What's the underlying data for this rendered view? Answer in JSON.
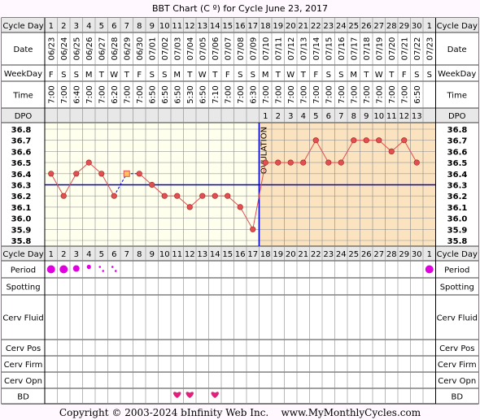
{
  "title": "BBT Chart (C º) for Cycle June 23, 2017",
  "copyright": "Copyright © 2003-2024 bInfinity Web Inc.    www.MyMonthlyCycles.com",
  "row_labels": {
    "cycle_day": "Cycle Day",
    "date": "Date",
    "weekday": "WeekDay",
    "time": "Time",
    "dpo": "DPO",
    "period": "Period",
    "spotting": "Spotting",
    "cerv_fluid": "Cerv Fluid",
    "cerv_pos": "Cerv Pos",
    "cerv_firm": "Cerv Firm",
    "cerv_opn": "Cerv Opn",
    "bd": "BD"
  },
  "ovulation_label": "OVULATION",
  "colors": {
    "temp_line": "#E05050",
    "coverline": "#0000CC",
    "ovulation_line": "#0000CC",
    "post_ovulation_fill": "#FBE3C0",
    "pre_ovulation_fill": "#FFFFEE",
    "period_dot": "#E000E0",
    "bd_heart": "#E0207A",
    "row_header_bg": "#E8E8E8"
  },
  "chart_data": {
    "type": "line",
    "title": "BBT Chart (C º) for Cycle June 23, 2017",
    "x": [
      "1",
      "2",
      "3",
      "4",
      "5",
      "6",
      "7",
      "8",
      "9",
      "10",
      "11",
      "12",
      "13",
      "14",
      "15",
      "16",
      "17",
      "18",
      "19",
      "20",
      "21",
      "22",
      "23",
      "24",
      "25",
      "26",
      "27",
      "28",
      "29",
      "30",
      "1"
    ],
    "dates": [
      "06/23",
      "06/24",
      "06/25",
      "06/26",
      "06/27",
      "06/28",
      "06/29",
      "06/30",
      "07/01",
      "07/02",
      "07/03",
      "07/04",
      "07/05",
      "07/06",
      "07/07",
      "07/08",
      "07/09",
      "07/10",
      "07/11",
      "07/12",
      "07/13",
      "07/14",
      "07/15",
      "07/16",
      "07/17",
      "07/18",
      "07/19",
      "07/20",
      "07/21",
      "07/22",
      "07/23"
    ],
    "weekdays": [
      "F",
      "S",
      "S",
      "M",
      "T",
      "W",
      "T",
      "F",
      "S",
      "S",
      "M",
      "T",
      "W",
      "T",
      "F",
      "S",
      "S",
      "M",
      "T",
      "W",
      "T",
      "F",
      "S",
      "S",
      "M",
      "T",
      "W",
      "T",
      "F",
      "S",
      "S"
    ],
    "times": [
      "7:00",
      "7:00",
      "6:40",
      "7:00",
      "7:00",
      "6:20",
      "7:00",
      "7:00",
      "6:50",
      "6:50",
      "6:50",
      "5:30",
      "6:50",
      "7:10",
      "7:00",
      "7:00",
      "6:30",
      "7:00",
      "7:00",
      "7:00",
      "7:00",
      "7:00",
      "7:00",
      "7:00",
      "7:00",
      "7:00",
      "7:00",
      "7:00",
      "7:00",
      "6:50",
      ""
    ],
    "dpo": [
      "",
      "",
      "",
      "",
      "",
      "",
      "",
      "",
      "",
      "",
      "",
      "",
      "",
      "",
      "",
      "",
      "",
      "1",
      "2",
      "3",
      "4",
      "5",
      "6",
      "7",
      "8",
      "9",
      "10",
      "11",
      "12",
      "13",
      ""
    ],
    "temps": [
      36.4,
      36.2,
      36.4,
      36.5,
      36.4,
      36.2,
      36.4,
      36.4,
      36.3,
      36.2,
      36.2,
      36.1,
      36.2,
      36.2,
      36.2,
      36.1,
      35.9,
      36.5,
      36.5,
      36.5,
      36.5,
      36.7,
      36.5,
      36.5,
      36.7,
      36.7,
      36.7,
      36.6,
      36.7,
      36.5,
      null
    ],
    "excluded_index": 6,
    "ylabels": [
      "36.8",
      "36.7",
      "36.6",
      "36.5",
      "36.4",
      "36.3",
      "36.2",
      "36.1",
      "36.0",
      "35.9",
      "35.8"
    ],
    "ylim": [
      35.8,
      36.8
    ],
    "coverline": 36.3,
    "ovulation_day": 17,
    "period": [
      3,
      3,
      2,
      1,
      0.5,
      0.5,
      0,
      0,
      0,
      0,
      0,
      0,
      0,
      0,
      0,
      0,
      0,
      0,
      0,
      0,
      0,
      0,
      0,
      0,
      0,
      0,
      0,
      0,
      0,
      0,
      3
    ],
    "bd_days": [
      11,
      12,
      14
    ]
  }
}
